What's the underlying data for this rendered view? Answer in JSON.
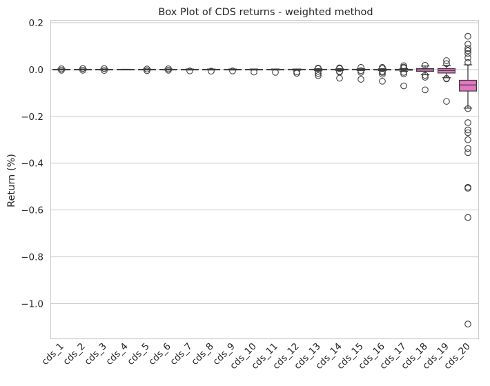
{
  "chart_data": {
    "type": "box",
    "title": "Box Plot of CDS returns - weighted method",
    "xlabel": "",
    "ylabel": "Return (%)",
    "ylim": [
      -1.15,
      0.21
    ],
    "yticks": [
      0.2,
      0.0,
      -0.2,
      -0.4,
      -0.6,
      -0.8,
      -1.0
    ],
    "ytick_labels": [
      "0.2",
      "0.0",
      "−0.2",
      "−0.4",
      "−0.6",
      "−0.8",
      "−1.0"
    ],
    "grid": "horizontal",
    "categories": [
      "cds_1",
      "cds_2",
      "cds_3",
      "cds_4",
      "cds_5",
      "cds_6",
      "cds_7",
      "cds_8",
      "cds_9",
      "cds_10",
      "cds_11",
      "cds_12",
      "cds_13",
      "cds_14",
      "cds_15",
      "cds_16",
      "cds_17",
      "cds_18",
      "cds_19",
      "cds_20"
    ],
    "colors": [
      "#e377c2",
      "#e377c2",
      "#e377c2",
      "#e377c2",
      "#e377c2",
      "#e377c2",
      "#e377c2",
      "#e377c2",
      "#e377c2",
      "#e377c2",
      "#e377c2",
      "#e377c2",
      "#e377c2",
      "#e377c2",
      "#e377c2",
      "#e377c2",
      "#e377c2",
      "#e377c2",
      "#e377c2",
      "#e377c2"
    ],
    "boxes": [
      {
        "q1": -0.0005,
        "median": 0.0,
        "q3": 0.0005,
        "whislo": -0.002,
        "whishi": 0.002,
        "fliers": [
          0.003,
          -0.003
        ]
      },
      {
        "q1": -0.0005,
        "median": 0.0,
        "q3": 0.0005,
        "whislo": -0.002,
        "whishi": 0.002,
        "fliers": [
          0.004,
          -0.003
        ]
      },
      {
        "q1": -0.0005,
        "median": 0.0,
        "q3": 0.0005,
        "whislo": -0.002,
        "whishi": 0.002,
        "fliers": [
          0.004,
          -0.004
        ]
      },
      {
        "q1": -0.0005,
        "median": 0.0,
        "q3": 0.0005,
        "whislo": -0.001,
        "whishi": 0.001,
        "fliers": []
      },
      {
        "q1": -0.0005,
        "median": 0.0,
        "q3": 0.0005,
        "whislo": -0.002,
        "whishi": 0.002,
        "fliers": [
          0.002,
          -0.005
        ]
      },
      {
        "q1": -0.0005,
        "median": 0.0,
        "q3": 0.0005,
        "whislo": -0.002,
        "whishi": 0.002,
        "fliers": [
          0.003,
          -0.003
        ]
      },
      {
        "q1": -0.0005,
        "median": 0.0,
        "q3": 0.0005,
        "whislo": -0.002,
        "whishi": 0.002,
        "fliers": [
          -0.006
        ]
      },
      {
        "q1": -0.0005,
        "median": 0.0,
        "q3": 0.0005,
        "whislo": -0.002,
        "whishi": 0.002,
        "fliers": [
          -0.007
        ]
      },
      {
        "q1": -0.0005,
        "median": 0.0,
        "q3": 0.0005,
        "whislo": -0.002,
        "whishi": 0.002,
        "fliers": [
          -0.006
        ]
      },
      {
        "q1": -0.0005,
        "median": 0.0,
        "q3": 0.0005,
        "whislo": -0.002,
        "whishi": 0.002,
        "fliers": [
          -0.011
        ]
      },
      {
        "q1": -0.0005,
        "median": 0.0,
        "q3": 0.0005,
        "whislo": -0.002,
        "whishi": 0.002,
        "fliers": [
          -0.012
        ]
      },
      {
        "q1": -0.001,
        "median": 0.0,
        "q3": 0.001,
        "whislo": -0.003,
        "whishi": 0.002,
        "fliers": [
          -0.01,
          -0.016
        ]
      },
      {
        "q1": -0.001,
        "median": 0.0,
        "q3": 0.001,
        "whislo": -0.004,
        "whishi": 0.003,
        "fliers": [
          0.004,
          0.006,
          -0.008,
          -0.017,
          -0.026
        ]
      },
      {
        "q1": -0.001,
        "median": 0.0,
        "q3": 0.001,
        "whislo": -0.004,
        "whishi": 0.003,
        "fliers": [
          0.004,
          0.007,
          -0.008,
          -0.011,
          -0.037
        ]
      },
      {
        "q1": -0.001,
        "median": 0.0,
        "q3": 0.001,
        "whislo": -0.004,
        "whishi": 0.003,
        "fliers": [
          0.009,
          -0.005,
          -0.012,
          -0.042
        ]
      },
      {
        "q1": -0.002,
        "median": -0.001,
        "q3": 0.0005,
        "whislo": -0.005,
        "whishi": 0.003,
        "fliers": [
          0.004,
          0.009,
          -0.008,
          -0.012,
          -0.02,
          -0.05
        ]
      },
      {
        "q1": -0.003,
        "median": -0.001,
        "q3": 0.001,
        "whislo": -0.008,
        "whishi": 0.004,
        "fliers": [
          0.006,
          0.01,
          0.016,
          -0.012,
          -0.019,
          -0.07
        ]
      },
      {
        "q1": -0.008,
        "median": -0.002,
        "q3": 0.004,
        "whislo": -0.022,
        "whishi": 0.015,
        "fliers": [
          0.018,
          -0.025,
          -0.033,
          -0.087
        ]
      },
      {
        "q1": -0.015,
        "median": -0.004,
        "q3": 0.004,
        "whislo": -0.035,
        "whishi": 0.018,
        "fliers": [
          0.025,
          0.038,
          -0.038,
          -0.04,
          -0.136
        ]
      },
      {
        "q1": -0.092,
        "median": -0.066,
        "q3": -0.046,
        "whislo": -0.165,
        "whishi": 0.02,
        "fliers": [
          0.03,
          0.05,
          0.068,
          0.08,
          0.09,
          0.108,
          0.142,
          -0.167,
          -0.227,
          -0.258,
          -0.27,
          -0.3,
          -0.337,
          -0.355,
          -0.503,
          -0.507,
          -0.632,
          -1.087
        ]
      }
    ]
  }
}
